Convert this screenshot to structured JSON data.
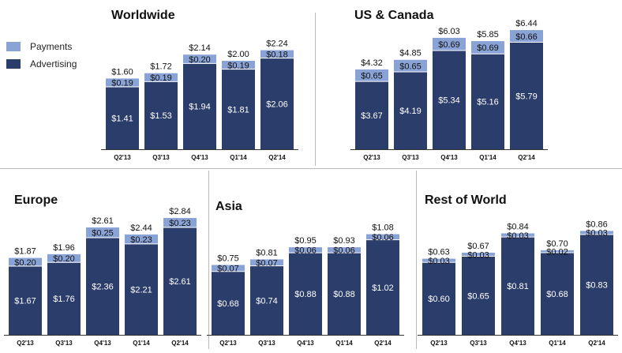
{
  "colors": {
    "advertising": "#2b3d6b",
    "payments": "#8aa3d6",
    "axis": "#333333",
    "text": "#111111",
    "divider": "#b8b8b8"
  },
  "legend": [
    {
      "name": "Payments",
      "color": "#8aa3d6"
    },
    {
      "name": "Advertising",
      "color": "#2b3d6b"
    }
  ],
  "chart_data": [
    {
      "type": "bar",
      "stacked": true,
      "title": "Worldwide",
      "categories": [
        "Q2'13",
        "Q3'13",
        "Q4'13",
        "Q1'14",
        "Q2'14"
      ],
      "series": [
        {
          "name": "Advertising",
          "values": [
            1.41,
            1.53,
            1.94,
            1.81,
            2.06
          ],
          "labels": [
            "$1.41",
            "$1.53",
            "$1.94",
            "$1.81",
            "$2.06"
          ]
        },
        {
          "name": "Payments",
          "values": [
            0.19,
            0.19,
            0.2,
            0.19,
            0.18
          ],
          "labels": [
            "$0.19",
            "$0.19",
            "$0.20",
            "$0.19",
            "$0.18"
          ]
        }
      ],
      "totals": [
        "$1.60",
        "$1.72",
        "$2.14",
        "$2.00",
        "$2.24"
      ]
    },
    {
      "type": "bar",
      "stacked": true,
      "title": "US & Canada",
      "categories": [
        "Q2'13",
        "Q3'13",
        "Q4'13",
        "Q1'14",
        "Q2'14"
      ],
      "series": [
        {
          "name": "Advertising",
          "values": [
            3.67,
            4.19,
            5.34,
            5.16,
            5.79
          ],
          "labels": [
            "$3.67",
            "$4.19",
            "$5.34",
            "$5.16",
            "$5.79"
          ]
        },
        {
          "name": "Payments",
          "values": [
            0.65,
            0.65,
            0.69,
            0.69,
            0.66
          ],
          "labels": [
            "$0.65",
            "$0.65",
            "$0.69",
            "$0.69",
            "$0.66"
          ]
        }
      ],
      "totals": [
        "$4.32",
        "$4.85",
        "$6.03",
        "$5.85",
        "$6.44"
      ]
    },
    {
      "type": "bar",
      "stacked": true,
      "title": "Europe",
      "categories": [
        "Q2'13",
        "Q3'13",
        "Q4'13",
        "Q1'14",
        "Q2'14"
      ],
      "series": [
        {
          "name": "Advertising",
          "values": [
            1.67,
            1.76,
            2.36,
            2.21,
            2.61
          ],
          "labels": [
            "$1.67",
            "$1.76",
            "$2.36",
            "$2.21",
            "$2.61"
          ]
        },
        {
          "name": "Payments",
          "values": [
            0.2,
            0.2,
            0.25,
            0.23,
            0.23
          ],
          "labels": [
            "$0.20",
            "$0.20",
            "$0.25",
            "$0.23",
            "$0.23"
          ]
        }
      ],
      "totals": [
        "$1.87",
        "$1.96",
        "$2.61",
        "$2.44",
        "$2.84"
      ]
    },
    {
      "type": "bar",
      "stacked": true,
      "title": "Asia",
      "categories": [
        "Q2'13",
        "Q3'13",
        "Q4'13",
        "Q1'14",
        "Q2'14"
      ],
      "series": [
        {
          "name": "Advertising",
          "values": [
            0.68,
            0.74,
            0.88,
            0.88,
            1.02
          ],
          "labels": [
            "$0.68",
            "$0.74",
            "$0.88",
            "$0.88",
            "$1.02"
          ]
        },
        {
          "name": "Payments",
          "values": [
            0.07,
            0.07,
            0.06,
            0.06,
            0.06
          ],
          "labels": [
            "$0.07",
            "$0.07",
            "$0.06",
            "$0.06",
            "$0.06"
          ]
        }
      ],
      "totals": [
        "$0.75",
        "$0.81",
        "$0.95",
        "$0.93",
        "$1.08"
      ]
    },
    {
      "type": "bar",
      "stacked": true,
      "title": "Rest of World",
      "categories": [
        "Q2'13",
        "Q3'13",
        "Q4'13",
        "Q1'14",
        "Q2'14"
      ],
      "series": [
        {
          "name": "Advertising",
          "values": [
            0.6,
            0.65,
            0.81,
            0.68,
            0.83
          ],
          "labels": [
            "$0.60",
            "$0.65",
            "$0.81",
            "$0.68",
            "$0.83"
          ]
        },
        {
          "name": "Payments",
          "values": [
            0.03,
            0.03,
            0.03,
            0.02,
            0.03
          ],
          "labels": [
            "$0.03",
            "$0.03",
            "$0.03",
            "$0.02",
            "$0.03"
          ]
        }
      ],
      "totals": [
        "$0.63",
        "$0.67",
        "$0.84",
        "$0.70",
        "$0.86"
      ]
    }
  ]
}
